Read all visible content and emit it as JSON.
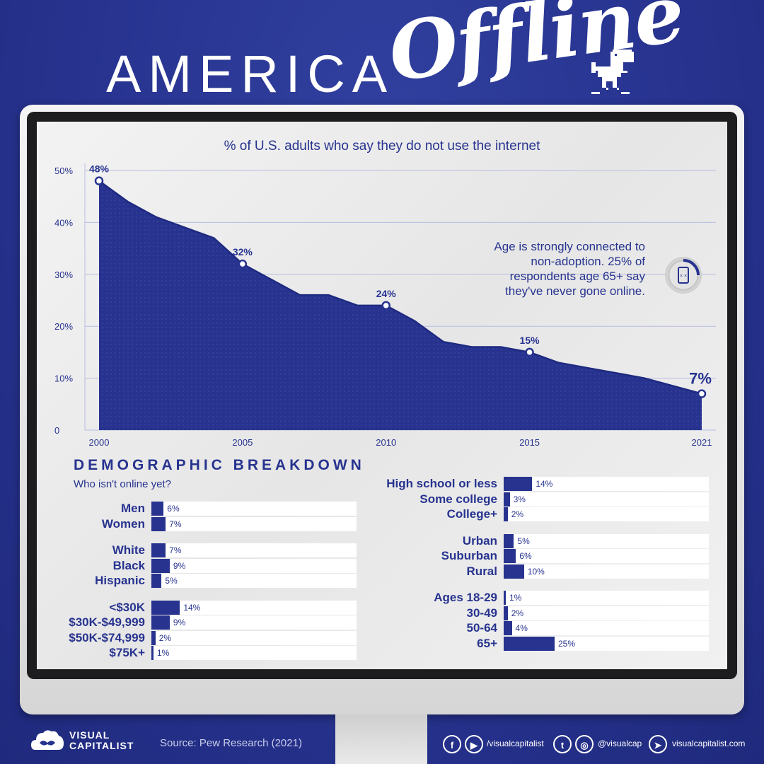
{
  "title": {
    "part1": "AMERICA",
    "part2": "Offline"
  },
  "chart_data": {
    "type": "area",
    "title": "% of U.S. adults who say they do not use the internet",
    "x": [
      2000,
      2001,
      2002,
      2003,
      2004,
      2005,
      2006,
      2007,
      2008,
      2009,
      2010,
      2011,
      2012,
      2013,
      2014,
      2015,
      2016,
      2017,
      2018,
      2019,
      2021
    ],
    "values": [
      48,
      44,
      41,
      39,
      37,
      32,
      29,
      26,
      26,
      24,
      24,
      21,
      17,
      16,
      16,
      15,
      13,
      12,
      11,
      10,
      7
    ],
    "data_labels": [
      {
        "x": 2000,
        "y": 48,
        "text": "48%"
      },
      {
        "x": 2005,
        "y": 32,
        "text": "32%"
      },
      {
        "x": 2010,
        "y": 24,
        "text": "24%"
      },
      {
        "x": 2015,
        "y": 15,
        "text": "15%"
      },
      {
        "x": 2021,
        "y": 7,
        "text": "7%"
      }
    ],
    "y_ticks": [
      "0",
      "10%",
      "20%",
      "30%",
      "40%",
      "50%"
    ],
    "x_ticks": [
      "2000",
      "2005",
      "2010",
      "2015",
      "2021"
    ],
    "xlim": [
      2000,
      2021
    ],
    "ylim": [
      0,
      50
    ],
    "grid": true,
    "annotation": "Age is strongly connected to non-adoption. 25% of respondents age 65+ say they've never gone online."
  },
  "demographics": {
    "heading": "DEMOGRAPHIC BREAKDOWN",
    "subheading": "Who isn't online yet?",
    "left_groups": [
      [
        {
          "label": "Men",
          "value": 6,
          "text": "6%"
        },
        {
          "label": "Women",
          "value": 7,
          "text": "7%"
        }
      ],
      [
        {
          "label": "White",
          "value": 7,
          "text": "7%"
        },
        {
          "label": "Black",
          "value": 9,
          "text": "9%"
        },
        {
          "label": "Hispanic",
          "value": 5,
          "text": "5%"
        }
      ],
      [
        {
          "label": "<$30K",
          "value": 14,
          "text": "14%"
        },
        {
          "label": "$30K-$49,999",
          "value": 9,
          "text": "9%"
        },
        {
          "label": "$50K-$74,999",
          "value": 2,
          "text": "2%"
        },
        {
          "label": "$75K+",
          "value": 1,
          "text": "1%"
        }
      ]
    ],
    "right_groups": [
      [
        {
          "label": "High school or less",
          "value": 14,
          "text": "14%"
        },
        {
          "label": "Some college",
          "value": 3,
          "text": "3%"
        },
        {
          "label": "College+",
          "value": 2,
          "text": "2%"
        }
      ],
      [
        {
          "label": "Urban",
          "value": 5,
          "text": "5%"
        },
        {
          "label": "Suburban",
          "value": 6,
          "text": "6%"
        },
        {
          "label": "Rural",
          "value": 10,
          "text": "10%"
        }
      ],
      [
        {
          "label": "Ages 18-29",
          "value": 1,
          "text": "1%"
        },
        {
          "label": "30-49",
          "value": 2,
          "text": "2%"
        },
        {
          "label": "50-64",
          "value": 4,
          "text": "4%"
        },
        {
          "label": "65+",
          "value": 25,
          "text": "25%"
        }
      ]
    ]
  },
  "footer": {
    "brand_line1": "VISUAL",
    "brand_line2": "CAPITALIST",
    "source": "Source: Pew Research (2021)",
    "handle1": "/visualcapitalist",
    "handle2": "@visualcap",
    "website": "visualcapitalist.com"
  },
  "colors": {
    "primary": "#27338f",
    "screen": "#ececec"
  }
}
